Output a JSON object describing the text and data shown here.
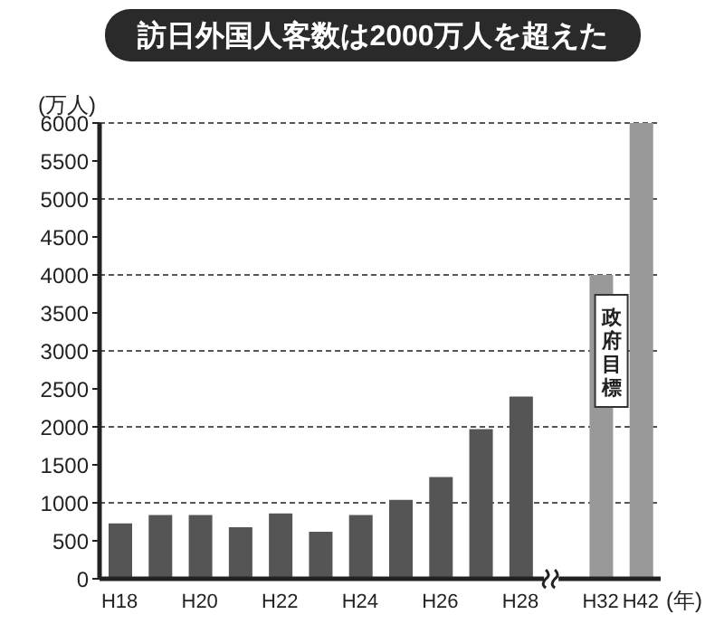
{
  "chart_data": {
    "type": "bar",
    "title": "訪日外国人客数は2000万人を超えた",
    "ylabel": "(万人)",
    "xlabel": "(年)",
    "categories": [
      "H18",
      null,
      "H20",
      null,
      "H22",
      null,
      "H24",
      null,
      "H26",
      null,
      "H28",
      null,
      "H32",
      "H42"
    ],
    "values": [
      730,
      840,
      840,
      680,
      860,
      620,
      840,
      1040,
      1340,
      1970,
      2400,
      null,
      4000,
      6000
    ],
    "colors": [
      "#555555",
      "#555555",
      "#555555",
      "#555555",
      "#555555",
      "#555555",
      "#555555",
      "#555555",
      "#555555",
      "#555555",
      "#555555",
      "#555555",
      "#999999",
      "#999999"
    ],
    "ylim": [
      0,
      6000
    ],
    "yticks": [
      0,
      500,
      1000,
      1500,
      2000,
      2500,
      3000,
      3500,
      4000,
      4500,
      5000,
      5500,
      6000
    ],
    "grid": "y",
    "annotations": [
      "政府目標"
    ]
  }
}
